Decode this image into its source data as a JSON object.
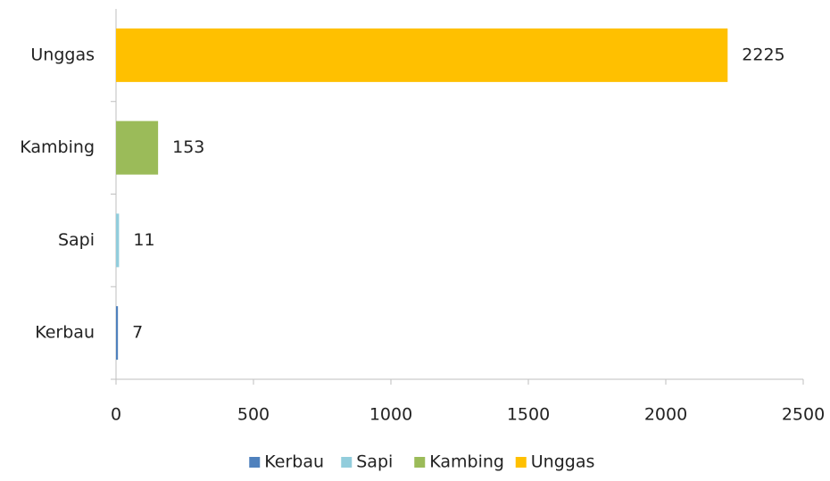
{
  "chart_data": {
    "type": "bar",
    "orientation": "horizontal",
    "categories": [
      "Kerbau",
      "Sapi",
      "Kambing",
      "Unggas"
    ],
    "values": [
      7,
      11,
      153,
      2225
    ],
    "colors": [
      "#4f81bd",
      "#92cddc",
      "#9bbb59",
      "#ffc000"
    ],
    "xlim": [
      0,
      2500
    ],
    "xticks": [
      0,
      500,
      1000,
      1500,
      2000,
      2500
    ],
    "grid": false,
    "legend": "bottom"
  }
}
